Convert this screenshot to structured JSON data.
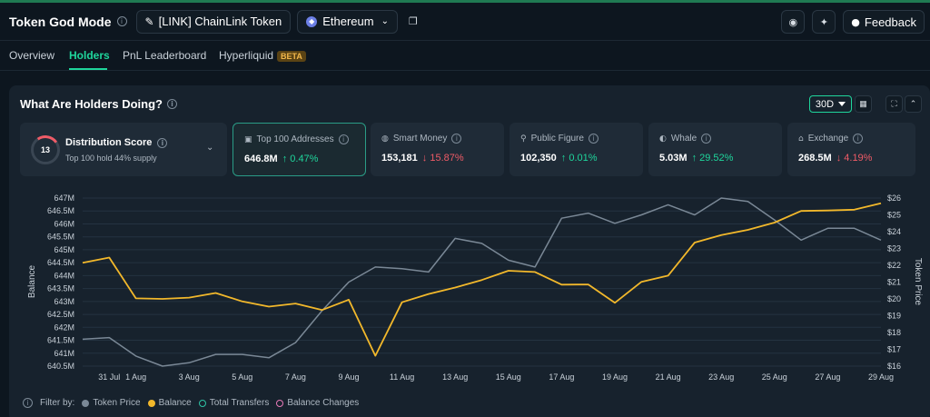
{
  "app": {
    "title": "Token God Mode",
    "token_selector": "[LINK] ChainLink Token",
    "chain_selector": "Ethereum",
    "feedback_label": "Feedback"
  },
  "tabs": [
    {
      "label": "Overview",
      "active": false
    },
    {
      "label": "Holders",
      "active": true
    },
    {
      "label": "PnL Leaderboard",
      "active": false
    },
    {
      "label": "Hyperliquid",
      "active": false,
      "badge": "BETA"
    }
  ],
  "panel": {
    "title": "What Are Holders Doing?",
    "period": "30D"
  },
  "distribution": {
    "score": "13",
    "title": "Distribution Score",
    "subtitle": "Top 100 hold 44% supply"
  },
  "cards": [
    {
      "label": "Top 100 Addresses",
      "value": "646.8M",
      "change": "0.47%",
      "direction": "up",
      "icon": "wallet-icon",
      "selected": true
    },
    {
      "label": "Smart Money",
      "value": "153,181",
      "change": "15.87%",
      "direction": "down",
      "icon": "brain-icon",
      "selected": false
    },
    {
      "label": "Public Figure",
      "value": "102,350",
      "change": "0.01%",
      "direction": "up",
      "icon": "person-icon",
      "selected": false
    },
    {
      "label": "Whale",
      "value": "5.03M",
      "change": "29.52%",
      "direction": "up",
      "icon": "whale-icon",
      "selected": false
    },
    {
      "label": "Exchange",
      "value": "268.5M",
      "change": "4.19%",
      "direction": "down",
      "icon": "bank-icon",
      "selected": false
    }
  ],
  "legend": {
    "filter_label": "Filter by:",
    "items": [
      {
        "label": "Token Price",
        "color": "#7a8896",
        "filled": true
      },
      {
        "label": "Balance",
        "color": "#f2b82b",
        "filled": true
      },
      {
        "label": "Total Transfers",
        "color": "#2ec4a6",
        "filled": false
      },
      {
        "label": "Balance Changes",
        "color": "#e87ab8",
        "filled": false
      }
    ]
  },
  "chart_data": {
    "type": "line",
    "ylabel": "Balance",
    "y2label": "Token Price",
    "ylim": [
      640.5,
      647
    ],
    "y2lim": [
      16,
      26
    ],
    "yticks": [
      "647M",
      "646.5M",
      "646M",
      "645.5M",
      "645M",
      "644.5M",
      "644M",
      "643.5M",
      "643M",
      "642.5M",
      "642M",
      "641.5M",
      "641M",
      "640.5M"
    ],
    "y2ticks": [
      "$26",
      "$25",
      "$24",
      "$23",
      "$22",
      "$21",
      "$20",
      "$19",
      "$18",
      "$17",
      "$16"
    ],
    "xticks": [
      "31 Jul",
      "1 Aug",
      "3 Aug",
      "5 Aug",
      "7 Aug",
      "9 Aug",
      "11 Aug",
      "13 Aug",
      "15 Aug",
      "17 Aug",
      "19 Aug",
      "21 Aug",
      "23 Aug",
      "25 Aug",
      "27 Aug",
      "29 Aug"
    ],
    "x": [
      "30 Jul",
      "31 Jul",
      "1 Aug",
      "2 Aug",
      "3 Aug",
      "4 Aug",
      "5 Aug",
      "6 Aug",
      "7 Aug",
      "8 Aug",
      "9 Aug",
      "10 Aug",
      "11 Aug",
      "12 Aug",
      "13 Aug",
      "14 Aug",
      "15 Aug",
      "16 Aug",
      "17 Aug",
      "18 Aug",
      "19 Aug",
      "20 Aug",
      "21 Aug",
      "22 Aug",
      "23 Aug",
      "24 Aug",
      "25 Aug",
      "26 Aug",
      "27 Aug",
      "28 Aug",
      "29 Aug"
    ],
    "grid": true,
    "series": [
      {
        "name": "Balance",
        "axis": "left",
        "color": "#f2b82b",
        "values": [
          644.5,
          644.7,
          643.12,
          643.1,
          643.15,
          643.33,
          643.0,
          642.8,
          642.92,
          642.67,
          643.07,
          640.9,
          642.97,
          643.29,
          643.54,
          643.83,
          644.19,
          644.14,
          643.65,
          643.66,
          642.95,
          643.76,
          644.0,
          645.28,
          645.57,
          645.77,
          646.05,
          646.5,
          646.52,
          646.55,
          646.8
        ]
      },
      {
        "name": "Token Price",
        "axis": "right",
        "color": "#7a8896",
        "values": [
          17.6,
          17.7,
          16.6,
          16.0,
          16.2,
          16.7,
          16.7,
          16.5,
          17.4,
          19.3,
          21.0,
          21.9,
          21.8,
          21.6,
          23.6,
          23.3,
          22.3,
          21.9,
          24.8,
          25.1,
          24.5,
          25.0,
          25.6,
          25.0,
          26.0,
          25.8,
          24.7,
          23.5,
          24.2,
          24.2,
          23.5
        ]
      }
    ]
  }
}
